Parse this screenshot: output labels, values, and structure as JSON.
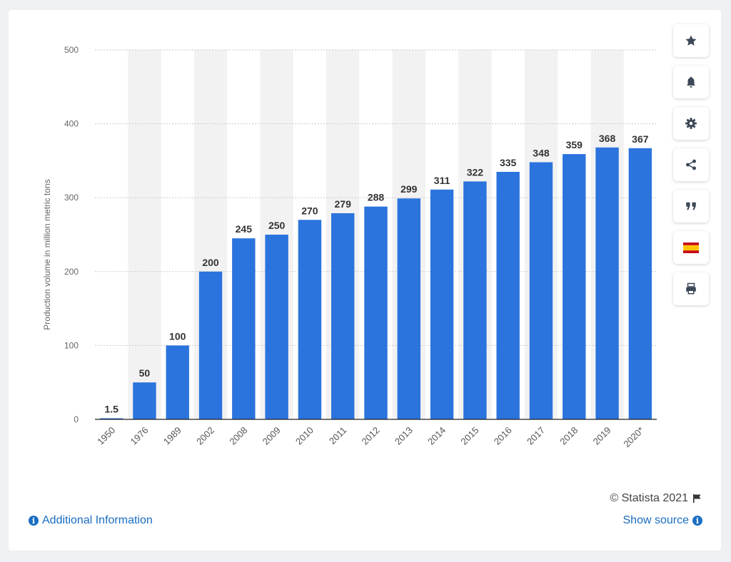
{
  "chart_data": {
    "type": "bar",
    "categories": [
      "1950",
      "1976",
      "1989",
      "2002",
      "2008",
      "2009",
      "2010",
      "2011",
      "2012",
      "2013",
      "2014",
      "2015",
      "2016",
      "2017",
      "2018",
      "2019",
      "2020*"
    ],
    "values": [
      1.5,
      50,
      100,
      200,
      245,
      250,
      270,
      279,
      288,
      299,
      311,
      322,
      335,
      348,
      359,
      368,
      367
    ],
    "value_labels": [
      "1.5",
      "50",
      "100",
      "200",
      "245",
      "250",
      "270",
      "279",
      "288",
      "299",
      "311",
      "322",
      "335",
      "348",
      "359",
      "368",
      "367"
    ],
    "title": "",
    "xlabel": "",
    "ylabel": "Production volume in million metric tons",
    "ylim": [
      0,
      500
    ],
    "yticks": [
      "0",
      "100",
      "200",
      "300",
      "400",
      "500"
    ],
    "grid": true,
    "bar_color": "#2b74dd",
    "band_color": "#f2f2f2"
  },
  "toolbar": {
    "buttons": [
      {
        "name": "favorite-button",
        "icon": "star-icon"
      },
      {
        "name": "notification-button",
        "icon": "bell-icon"
      },
      {
        "name": "settings-button",
        "icon": "gear-icon"
      },
      {
        "name": "share-button",
        "icon": "share-icon"
      },
      {
        "name": "cite-button",
        "icon": "quote-icon"
      },
      {
        "name": "language-button",
        "icon": "spain-flag-icon"
      },
      {
        "name": "print-button",
        "icon": "printer-icon"
      }
    ]
  },
  "footer": {
    "copyright": "© Statista 2021",
    "additional_info": "Additional Information",
    "show_source": "Show source"
  }
}
